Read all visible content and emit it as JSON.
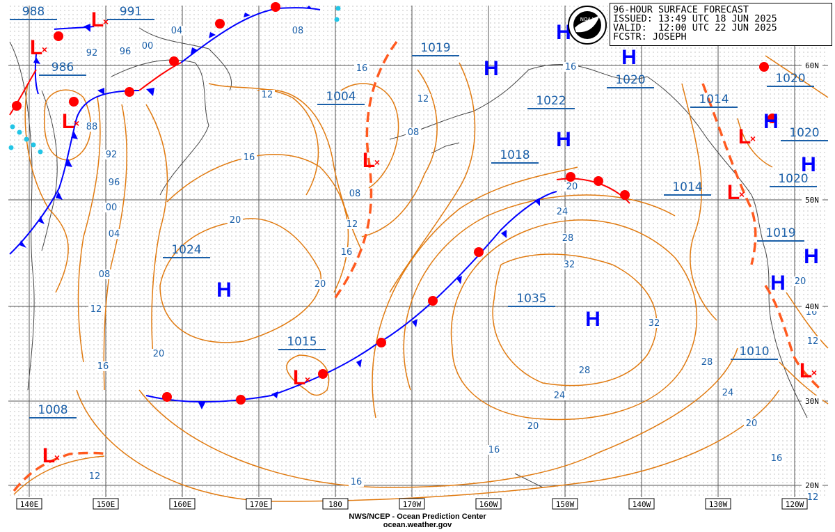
{
  "header": {
    "title": "96-HOUR SURFACE FORECAST",
    "issued": "ISSUED: 13:49 UTC 18 JUN 2025",
    "valid": "VALID:  12:00 UTC 22 JUN 2025",
    "forecaster": "FCSTR: JOSEPH"
  },
  "logo_text": "NOAA",
  "footer": {
    "line1": "NWS/NCEP - Ocean Prediction Center",
    "line2": "ocean.weather.gov"
  },
  "longitude_labels": [
    "140E",
    "150E",
    "160E",
    "170E",
    "180",
    "170W",
    "160W",
    "150W",
    "140W",
    "130W",
    "120W"
  ],
  "latitude_labels": [
    "60N",
    "50N",
    "40N",
    "30N",
    "20N"
  ],
  "pressure_centers": [
    {
      "type": "L",
      "value": "988"
    },
    {
      "type": "L",
      "value": "991"
    },
    {
      "type": "L",
      "value": "986"
    },
    {
      "type": "L",
      "value": "1004"
    },
    {
      "type": "H",
      "value": "1019"
    },
    {
      "type": "H",
      "value": "1022"
    },
    {
      "type": "H",
      "value": "1020"
    },
    {
      "type": "H",
      "value": "1018"
    },
    {
      "type": "H",
      "value": "1024"
    },
    {
      "type": "L",
      "value": "1015"
    },
    {
      "type": "H",
      "value": "1035"
    },
    {
      "type": "L",
      "value": "1014"
    },
    {
      "type": "L",
      "value": "1014"
    },
    {
      "type": "H",
      "value": "1020"
    },
    {
      "type": "H",
      "value": "1020"
    },
    {
      "type": "H",
      "value": "1020"
    },
    {
      "type": "H",
      "value": "1019"
    },
    {
      "type": "L",
      "value": "1010"
    },
    {
      "type": "L",
      "value": "1008"
    }
  ],
  "isobar_labels": [
    "92",
    "96",
    "00",
    "04",
    "08",
    "88",
    "92",
    "96",
    "00",
    "04",
    "08",
    "12",
    "16",
    "20",
    "12",
    "16",
    "20",
    "16",
    "12",
    "08",
    "08",
    "12",
    "16",
    "20",
    "24",
    "28",
    "32",
    "32",
    "28",
    "24",
    "20",
    "16",
    "20",
    "24",
    "28",
    "16",
    "20",
    "16",
    "12",
    "16",
    "20",
    "12",
    "12",
    "16"
  ],
  "colors": {
    "isobar": "#e07a10",
    "warm_front": "#ff0000",
    "cold_front": "#0000ff",
    "trough": "#ff5a1f",
    "label": "#1a5fa8",
    "grid": "#555555"
  }
}
